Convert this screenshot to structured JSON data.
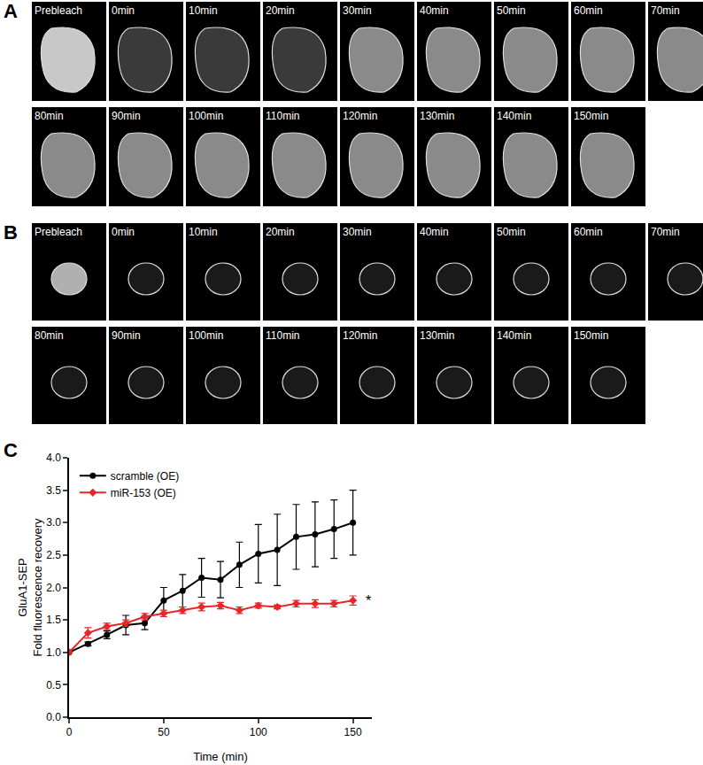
{
  "panels": [
    {
      "label": "A",
      "frames": [
        "Prebleach",
        "0min",
        "10min",
        "20min",
        "30min",
        "40min",
        "50min",
        "60min",
        "70min",
        "80min",
        "90min",
        "100min",
        "110min",
        "120min",
        "130min",
        "140min",
        "150min"
      ]
    },
    {
      "label": "B",
      "frames": [
        "Prebleach",
        "0min",
        "10min",
        "20min",
        "30min",
        "40min",
        "50min",
        "60min",
        "70min",
        "80min",
        "90min",
        "100min",
        "110min",
        "120min",
        "130min",
        "140min",
        "150min"
      ]
    }
  ],
  "chart_data": {
    "label": "C",
    "type": "line",
    "x": [
      0,
      10,
      20,
      30,
      40,
      50,
      60,
      70,
      80,
      90,
      100,
      110,
      120,
      130,
      140,
      150
    ],
    "series": [
      {
        "name": "scramble (OE)",
        "color": "#000000",
        "marker": "circle",
        "values": [
          1.0,
          1.13,
          1.27,
          1.42,
          1.45,
          1.8,
          1.95,
          2.15,
          2.12,
          2.35,
          2.52,
          2.58,
          2.78,
          2.82,
          2.9,
          3.0
        ],
        "error": [
          0,
          0.03,
          0.06,
          0.15,
          0.1,
          0.2,
          0.25,
          0.3,
          0.28,
          0.35,
          0.45,
          0.55,
          0.5,
          0.5,
          0.45,
          0.5
        ]
      },
      {
        "name": "miR-153 (OE)",
        "color": "#e8262a",
        "marker": "diamond",
        "values": [
          1.0,
          1.3,
          1.4,
          1.45,
          1.55,
          1.6,
          1.65,
          1.7,
          1.72,
          1.65,
          1.72,
          1.7,
          1.75,
          1.75,
          1.75,
          1.8
        ],
        "error": [
          0,
          0.08,
          0.05,
          0.05,
          0.05,
          0.05,
          0.05,
          0.06,
          0.05,
          0.05,
          0.04,
          0.03,
          0.05,
          0.06,
          0.05,
          0.07
        ]
      }
    ],
    "xlabel": "Time (min)",
    "ylabel": [
      "GluA1-SEP",
      "Fold fluorescence recovery"
    ],
    "xlim": [
      0,
      160
    ],
    "xticks": [
      0,
      50,
      100,
      150
    ],
    "ylim": [
      0,
      4
    ],
    "yticks": [
      {
        "value": 0,
        "label": "0.0"
      },
      {
        "value": 0.5,
        "label": "0.5"
      },
      {
        "value": 1,
        "label": "1.0"
      },
      {
        "value": 1.5,
        "label": "1.5"
      },
      {
        "value": 2,
        "label": "2.0"
      },
      {
        "value": 2.5,
        "label": "2.5"
      },
      {
        "value": 3,
        "label": "3.0"
      },
      {
        "value": 3.5,
        "label": "3.5"
      },
      {
        "value": 4,
        "label": "4.0"
      }
    ],
    "annotations": [
      {
        "text": "*",
        "x": 156,
        "y": 1.8
      }
    ],
    "legend": "top left",
    "grid": false
  }
}
